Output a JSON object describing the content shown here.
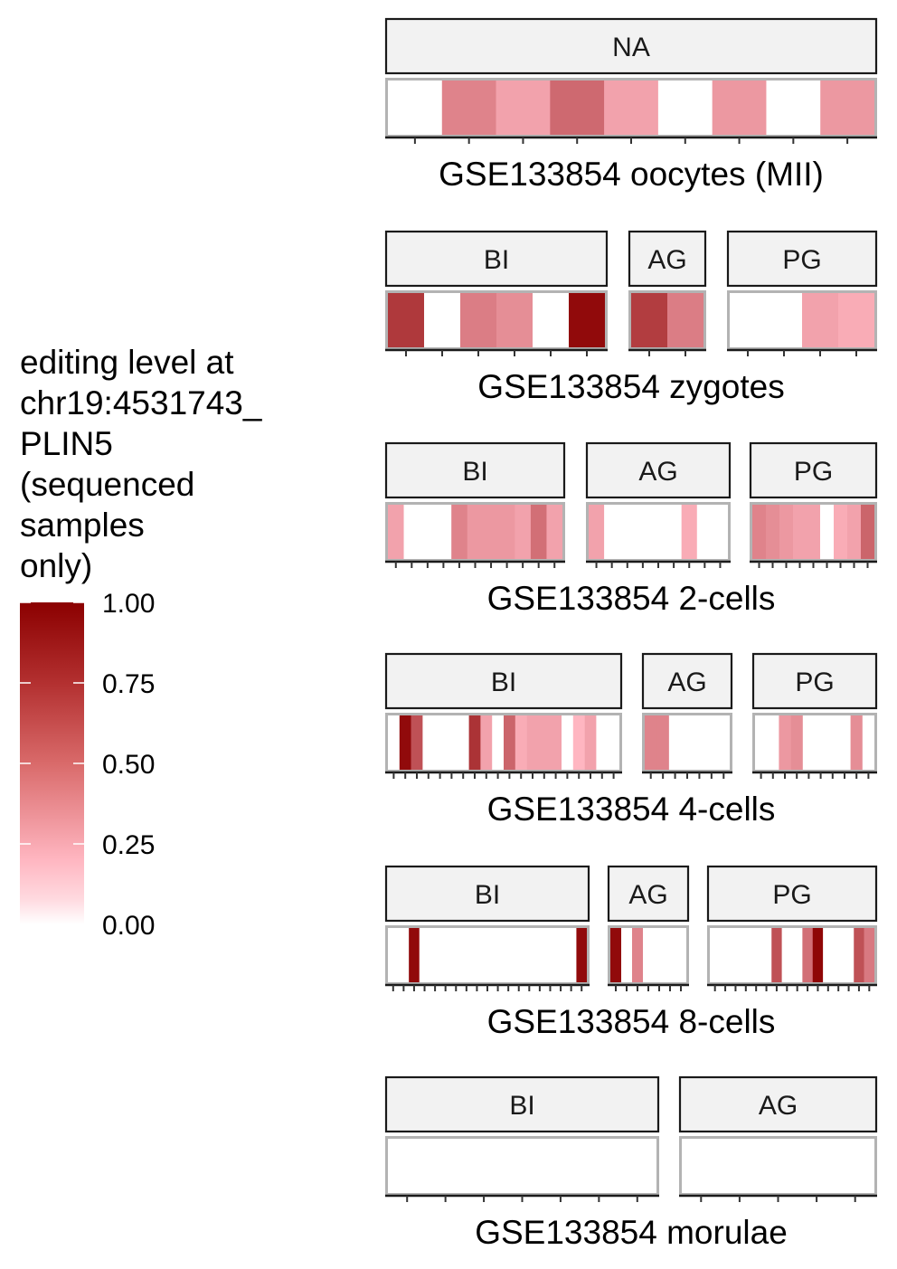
{
  "chart_data": {
    "type": "heatmap",
    "legend": {
      "title_lines": [
        "editing level at",
        "chr19:4531743_",
        "PLIN5",
        "(sequenced",
        "samples",
        "only)"
      ],
      "ticks": [
        "1.00",
        "0.75",
        "0.50",
        "0.25",
        "0.00"
      ],
      "tick_values": [
        1.0,
        0.75,
        0.5,
        0.25,
        0.0
      ],
      "range": [
        0,
        1
      ],
      "colors": {
        "low": "#ffffff",
        "mid": "#ffb6c1",
        "high": "#8b0000"
      }
    },
    "panels": [
      {
        "label": "GSE133854 oocytes (MII)",
        "groups": [
          {
            "name": "NA",
            "values": [
              null,
              0.35,
              0.2,
              0.48,
              0.2,
              null,
              0.25,
              null,
              0.25
            ]
          }
        ]
      },
      {
        "label": "GSE133854 zygotes",
        "groups": [
          {
            "name": "BI",
            "values": [
              0.72,
              null,
              0.38,
              0.3,
              null,
              0.95
            ]
          },
          {
            "name": "AG",
            "values": [
              0.7,
              0.38
            ]
          },
          {
            "name": "PG",
            "values": [
              null,
              null,
              0.2,
              0.15
            ]
          }
        ]
      },
      {
        "label": "GSE133854 2-cells",
        "groups": [
          {
            "name": "BI",
            "values": [
              0.2,
              null,
              null,
              null,
              0.35,
              0.25,
              0.25,
              0.25,
              0.2,
              0.45,
              0.2
            ]
          },
          {
            "name": "AG",
            "values": [
              0.2,
              null,
              null,
              null,
              null,
              null,
              0.15,
              null,
              null
            ]
          },
          {
            "name": "PG",
            "values": [
              0.35,
              0.3,
              0.25,
              0.2,
              0.2,
              null,
              0.15,
              0.2,
              0.5
            ]
          }
        ]
      },
      {
        "label": "GSE133854 4-cells",
        "groups": [
          {
            "name": "BI",
            "values": [
              null,
              0.95,
              0.6,
              null,
              null,
              null,
              null,
              0.75,
              0.2,
              null,
              0.5,
              0.15,
              0.2,
              0.2,
              0.2,
              null,
              0.1,
              0.2,
              null,
              null
            ]
          },
          {
            "name": "AG",
            "values": [
              0.35,
              0.35,
              null,
              null,
              null,
              null,
              null
            ]
          },
          {
            "name": "PG",
            "values": [
              null,
              null,
              0.25,
              0.3,
              null,
              null,
              null,
              null,
              0.3,
              null
            ]
          }
        ]
      },
      {
        "label": "GSE133854 8-cells",
        "groups": [
          {
            "name": "BI",
            "values": [
              null,
              null,
              0.95,
              null,
              null,
              null,
              null,
              null,
              null,
              null,
              null,
              null,
              null,
              null,
              null,
              null,
              null,
              null,
              0.95
            ]
          },
          {
            "name": "AG",
            "values": [
              0.95,
              null,
              0.35,
              null,
              null,
              null,
              null
            ]
          },
          {
            "name": "PG",
            "values": [
              null,
              null,
              null,
              null,
              null,
              null,
              0.6,
              null,
              null,
              0.45,
              0.97,
              null,
              null,
              null,
              0.6,
              0.4
            ]
          }
        ]
      },
      {
        "label": "GSE133854 morulae",
        "groups": [
          {
            "name": "BI",
            "values": [
              null,
              null,
              null,
              null,
              null,
              null,
              null
            ]
          },
          {
            "name": "AG",
            "values": [
              null,
              null,
              null,
              null,
              null
            ]
          }
        ]
      }
    ]
  }
}
